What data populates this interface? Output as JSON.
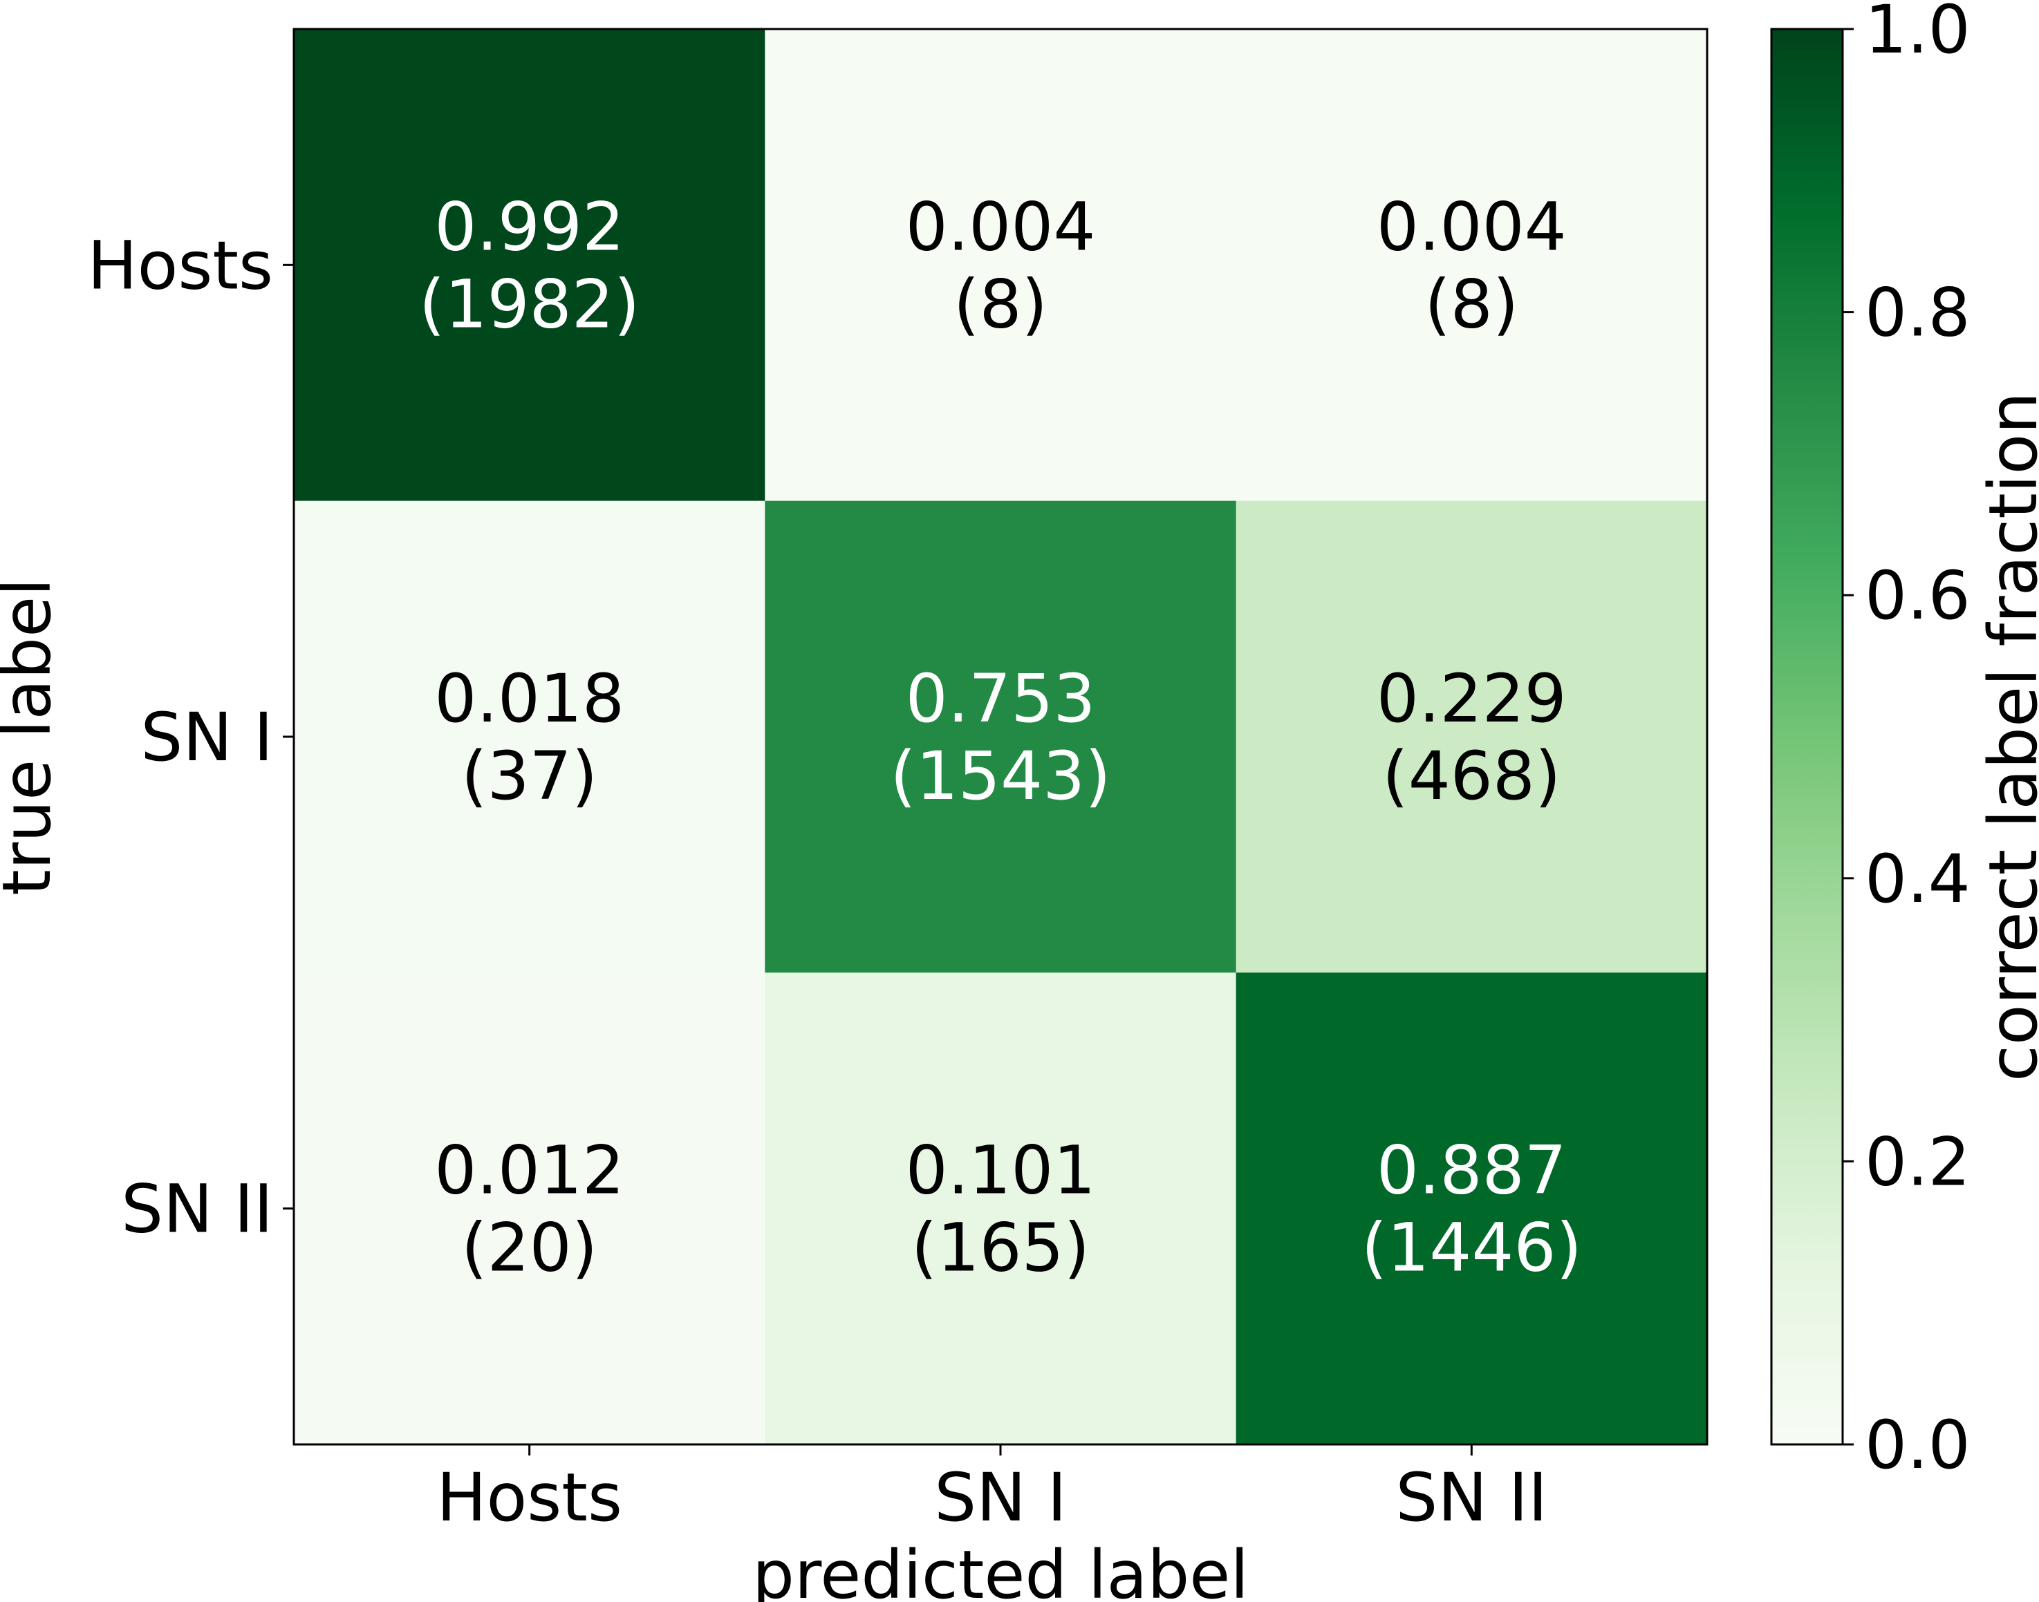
{
  "chart_data": {
    "type": "heatmap",
    "title": "",
    "xlabel": "predicted label",
    "ylabel": "true label",
    "x_categories": [
      "Hosts",
      "SN I",
      "SN II"
    ],
    "y_categories": [
      "Hosts",
      "SN I",
      "SN II"
    ],
    "fractions": [
      [
        0.992,
        0.004,
        0.004
      ],
      [
        0.018,
        0.753,
        0.229
      ],
      [
        0.012,
        0.101,
        0.887
      ]
    ],
    "counts": [
      [
        1982,
        8,
        8
      ],
      [
        37,
        1543,
        468
      ],
      [
        20,
        165,
        1446
      ]
    ],
    "cell_text": [
      [
        {
          "fraction": "0.992",
          "count": "(1982)"
        },
        {
          "fraction": "0.004",
          "count": "(8)"
        },
        {
          "fraction": "0.004",
          "count": "(8)"
        }
      ],
      [
        {
          "fraction": "0.018",
          "count": "(37)"
        },
        {
          "fraction": "0.753",
          "count": "(1543)"
        },
        {
          "fraction": "0.229",
          "count": "(468)"
        }
      ],
      [
        {
          "fraction": "0.012",
          "count": "(20)"
        },
        {
          "fraction": "0.101",
          "count": "(165)"
        },
        {
          "fraction": "0.887",
          "count": "(1446)"
        }
      ]
    ],
    "colorbar": {
      "label": "correct label fraction",
      "range": [
        0,
        1
      ],
      "ticks": [
        "0.0",
        "0.2",
        "0.4",
        "0.6",
        "0.8",
        "1.0"
      ],
      "colormap": "Greens",
      "color_low": "#f7fcf5",
      "color_high": "#00441b"
    },
    "grid": false
  }
}
